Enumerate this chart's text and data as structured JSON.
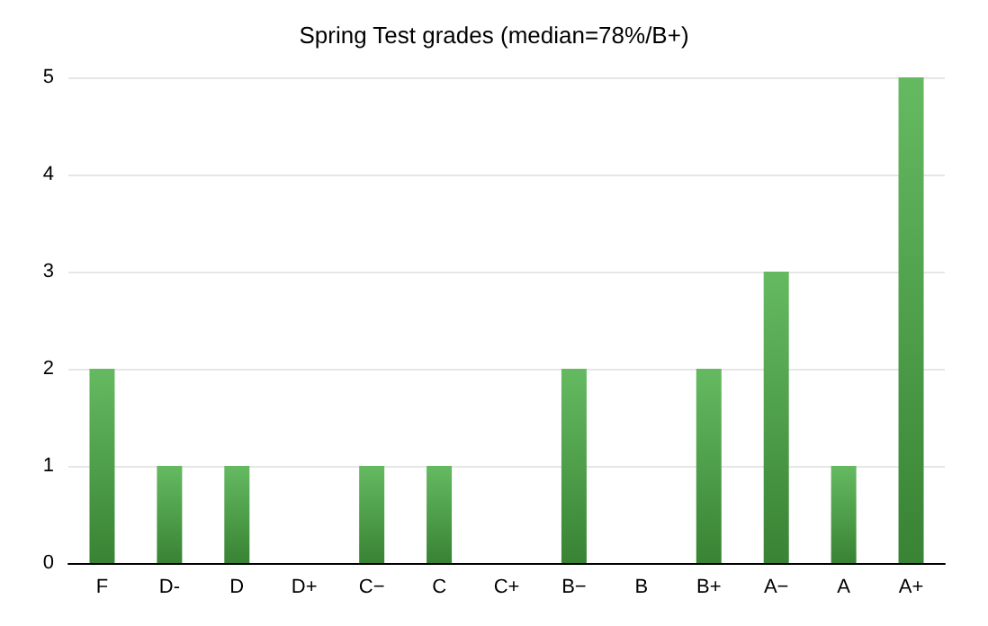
{
  "chart_data": {
    "type": "bar",
    "title": "Spring Test grades (median=78%/B+)",
    "categories": [
      "F",
      "D-",
      "D",
      "D+",
      "C−",
      "C",
      "C+",
      "B−",
      "B",
      "B+",
      "A−",
      "A",
      "A+"
    ],
    "values": [
      2,
      1,
      1,
      0,
      1,
      1,
      0,
      2,
      0,
      2,
      3,
      1,
      5
    ],
    "color": "#4aae45",
    "ylim": [
      0,
      5
    ],
    "yticks": [
      0,
      1,
      2,
      3,
      4,
      5
    ],
    "grid": "y"
  }
}
